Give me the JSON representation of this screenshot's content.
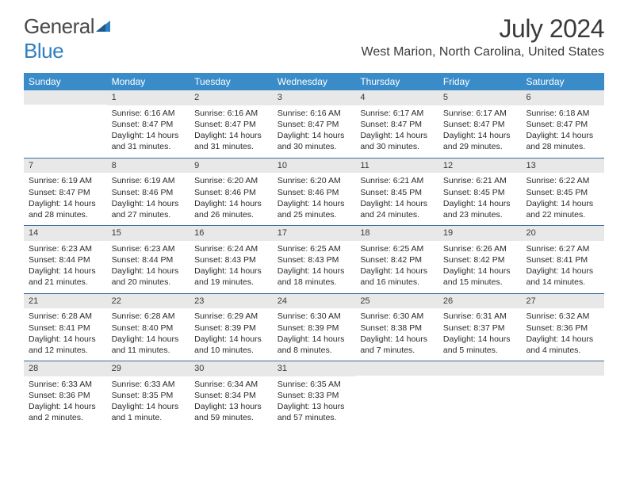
{
  "logo": {
    "part1": "General",
    "part2": "Blue"
  },
  "title": "July 2024",
  "location": "West Marion, North Carolina, United States",
  "colors": {
    "header_bg": "#3a8cc9",
    "header_text": "#ffffff",
    "daynum_bg": "#e8e8e8",
    "week_border": "#3a6c9e",
    "body_text": "#2a2a2a",
    "title_text": "#3a3a3a",
    "logo_gray": "#4a4a4a",
    "logo_blue": "#2f7fc1"
  },
  "dow": [
    "Sunday",
    "Monday",
    "Tuesday",
    "Wednesday",
    "Thursday",
    "Friday",
    "Saturday"
  ],
  "weeks": [
    [
      {
        "n": "",
        "sr": "",
        "ss": "",
        "dl": ""
      },
      {
        "n": "1",
        "sr": "Sunrise: 6:16 AM",
        "ss": "Sunset: 8:47 PM",
        "dl": "Daylight: 14 hours and 31 minutes."
      },
      {
        "n": "2",
        "sr": "Sunrise: 6:16 AM",
        "ss": "Sunset: 8:47 PM",
        "dl": "Daylight: 14 hours and 31 minutes."
      },
      {
        "n": "3",
        "sr": "Sunrise: 6:16 AM",
        "ss": "Sunset: 8:47 PM",
        "dl": "Daylight: 14 hours and 30 minutes."
      },
      {
        "n": "4",
        "sr": "Sunrise: 6:17 AM",
        "ss": "Sunset: 8:47 PM",
        "dl": "Daylight: 14 hours and 30 minutes."
      },
      {
        "n": "5",
        "sr": "Sunrise: 6:17 AM",
        "ss": "Sunset: 8:47 PM",
        "dl": "Daylight: 14 hours and 29 minutes."
      },
      {
        "n": "6",
        "sr": "Sunrise: 6:18 AM",
        "ss": "Sunset: 8:47 PM",
        "dl": "Daylight: 14 hours and 28 minutes."
      }
    ],
    [
      {
        "n": "7",
        "sr": "Sunrise: 6:19 AM",
        "ss": "Sunset: 8:47 PM",
        "dl": "Daylight: 14 hours and 28 minutes."
      },
      {
        "n": "8",
        "sr": "Sunrise: 6:19 AM",
        "ss": "Sunset: 8:46 PM",
        "dl": "Daylight: 14 hours and 27 minutes."
      },
      {
        "n": "9",
        "sr": "Sunrise: 6:20 AM",
        "ss": "Sunset: 8:46 PM",
        "dl": "Daylight: 14 hours and 26 minutes."
      },
      {
        "n": "10",
        "sr": "Sunrise: 6:20 AM",
        "ss": "Sunset: 8:46 PM",
        "dl": "Daylight: 14 hours and 25 minutes."
      },
      {
        "n": "11",
        "sr": "Sunrise: 6:21 AM",
        "ss": "Sunset: 8:45 PM",
        "dl": "Daylight: 14 hours and 24 minutes."
      },
      {
        "n": "12",
        "sr": "Sunrise: 6:21 AM",
        "ss": "Sunset: 8:45 PM",
        "dl": "Daylight: 14 hours and 23 minutes."
      },
      {
        "n": "13",
        "sr": "Sunrise: 6:22 AM",
        "ss": "Sunset: 8:45 PM",
        "dl": "Daylight: 14 hours and 22 minutes."
      }
    ],
    [
      {
        "n": "14",
        "sr": "Sunrise: 6:23 AM",
        "ss": "Sunset: 8:44 PM",
        "dl": "Daylight: 14 hours and 21 minutes."
      },
      {
        "n": "15",
        "sr": "Sunrise: 6:23 AM",
        "ss": "Sunset: 8:44 PM",
        "dl": "Daylight: 14 hours and 20 minutes."
      },
      {
        "n": "16",
        "sr": "Sunrise: 6:24 AM",
        "ss": "Sunset: 8:43 PM",
        "dl": "Daylight: 14 hours and 19 minutes."
      },
      {
        "n": "17",
        "sr": "Sunrise: 6:25 AM",
        "ss": "Sunset: 8:43 PM",
        "dl": "Daylight: 14 hours and 18 minutes."
      },
      {
        "n": "18",
        "sr": "Sunrise: 6:25 AM",
        "ss": "Sunset: 8:42 PM",
        "dl": "Daylight: 14 hours and 16 minutes."
      },
      {
        "n": "19",
        "sr": "Sunrise: 6:26 AM",
        "ss": "Sunset: 8:42 PM",
        "dl": "Daylight: 14 hours and 15 minutes."
      },
      {
        "n": "20",
        "sr": "Sunrise: 6:27 AM",
        "ss": "Sunset: 8:41 PM",
        "dl": "Daylight: 14 hours and 14 minutes."
      }
    ],
    [
      {
        "n": "21",
        "sr": "Sunrise: 6:28 AM",
        "ss": "Sunset: 8:41 PM",
        "dl": "Daylight: 14 hours and 12 minutes."
      },
      {
        "n": "22",
        "sr": "Sunrise: 6:28 AM",
        "ss": "Sunset: 8:40 PM",
        "dl": "Daylight: 14 hours and 11 minutes."
      },
      {
        "n": "23",
        "sr": "Sunrise: 6:29 AM",
        "ss": "Sunset: 8:39 PM",
        "dl": "Daylight: 14 hours and 10 minutes."
      },
      {
        "n": "24",
        "sr": "Sunrise: 6:30 AM",
        "ss": "Sunset: 8:39 PM",
        "dl": "Daylight: 14 hours and 8 minutes."
      },
      {
        "n": "25",
        "sr": "Sunrise: 6:30 AM",
        "ss": "Sunset: 8:38 PM",
        "dl": "Daylight: 14 hours and 7 minutes."
      },
      {
        "n": "26",
        "sr": "Sunrise: 6:31 AM",
        "ss": "Sunset: 8:37 PM",
        "dl": "Daylight: 14 hours and 5 minutes."
      },
      {
        "n": "27",
        "sr": "Sunrise: 6:32 AM",
        "ss": "Sunset: 8:36 PM",
        "dl": "Daylight: 14 hours and 4 minutes."
      }
    ],
    [
      {
        "n": "28",
        "sr": "Sunrise: 6:33 AM",
        "ss": "Sunset: 8:36 PM",
        "dl": "Daylight: 14 hours and 2 minutes."
      },
      {
        "n": "29",
        "sr": "Sunrise: 6:33 AM",
        "ss": "Sunset: 8:35 PM",
        "dl": "Daylight: 14 hours and 1 minute."
      },
      {
        "n": "30",
        "sr": "Sunrise: 6:34 AM",
        "ss": "Sunset: 8:34 PM",
        "dl": "Daylight: 13 hours and 59 minutes."
      },
      {
        "n": "31",
        "sr": "Sunrise: 6:35 AM",
        "ss": "Sunset: 8:33 PM",
        "dl": "Daylight: 13 hours and 57 minutes."
      },
      {
        "n": "",
        "sr": "",
        "ss": "",
        "dl": ""
      },
      {
        "n": "",
        "sr": "",
        "ss": "",
        "dl": ""
      },
      {
        "n": "",
        "sr": "",
        "ss": "",
        "dl": ""
      }
    ]
  ]
}
